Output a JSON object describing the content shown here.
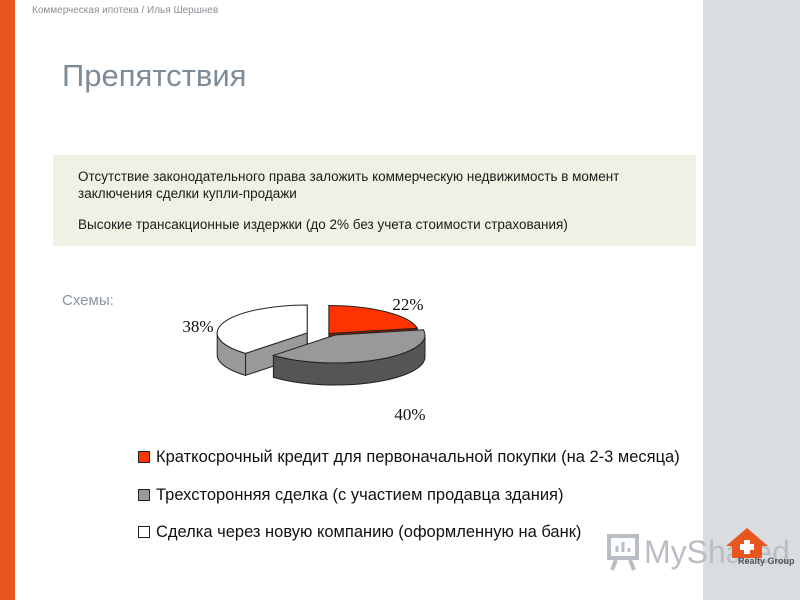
{
  "header": {
    "breadcrumb": "Коммерческая ипотека / Илья Шершнев",
    "title": "Препятствия"
  },
  "obstacles": [
    "Отсутствие законодательного права заложить коммерческую недвижимость в момент заключения сделки купли-продажи",
    "Высокие трансакционные издержки  (до 2% без учета стоимости страхования)"
  ],
  "schemes_label": "Схемы:",
  "colors": {
    "accent_orange": "#e8561e",
    "slice_red": "#ff3300",
    "slice_gray": "#999999",
    "slice_white": "#ffffff",
    "right_panel": "#dadde0"
  },
  "chart_data": {
    "type": "pie",
    "style": "3d-exploded",
    "title": "",
    "categories": [
      "Краткосрочный кредит для первоначальной покупки (на 2-3 месяца)",
      "Трехсторонняя сделка (с участием продавца здания)",
      "Сделка через новую компанию (оформленную на банк)"
    ],
    "values": [
      22,
      40,
      38
    ],
    "data_labels": [
      "22%",
      "40%",
      "38%"
    ],
    "colors": [
      "#ff3300",
      "#999999",
      "#ffffff"
    ],
    "legend_position": "bottom"
  },
  "watermark": {
    "text": "MyShared",
    "brand_text": "Realty Group"
  }
}
